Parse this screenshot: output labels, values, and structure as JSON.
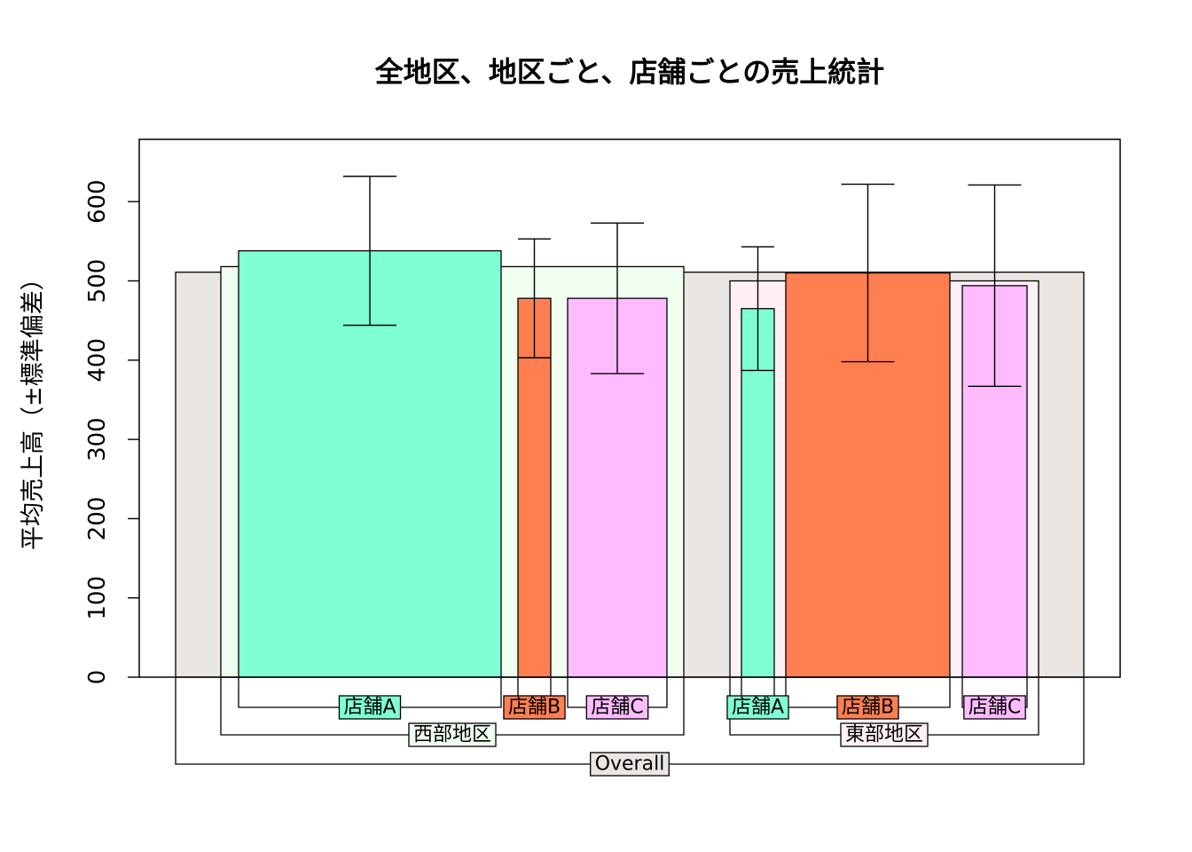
{
  "chart_data": {
    "type": "bar",
    "title": "全地区、地区ごと、店舗ごとの売上統計",
    "xlabel": "",
    "ylabel": "平均売上高（±標準偏差）",
    "ylim": [
      0,
      680
    ],
    "yticks": [
      0,
      100,
      200,
      300,
      400,
      500,
      600
    ],
    "grid": false,
    "legend": "none",
    "overall": {
      "label": "Overall",
      "mean": 511,
      "color": "#EAE6E4"
    },
    "regions": [
      {
        "label": "西部地区",
        "mean": 518,
        "color": "#F0FFF0",
        "stores": [
          {
            "label": "店舗A",
            "mean": 538,
            "sd": 94,
            "color": "#7FFFD4"
          },
          {
            "label": "店舗B",
            "mean": 478,
            "sd": 75,
            "color": "#FF7F50"
          },
          {
            "label": "店舗C",
            "mean": 478,
            "sd": 95,
            "color": "#FFBBFF"
          }
        ]
      },
      {
        "label": "東部地区",
        "mean": 500,
        "color": "#FFF0F5",
        "stores": [
          {
            "label": "店舗A",
            "mean": 465,
            "sd": 78,
            "color": "#7FFFD4"
          },
          {
            "label": "店舗B",
            "mean": 510,
            "sd": 112,
            "color": "#FF7F50"
          },
          {
            "label": "店舗C",
            "mean": 494,
            "sd": 127,
            "color": "#FFBBFF"
          }
        ]
      }
    ]
  }
}
